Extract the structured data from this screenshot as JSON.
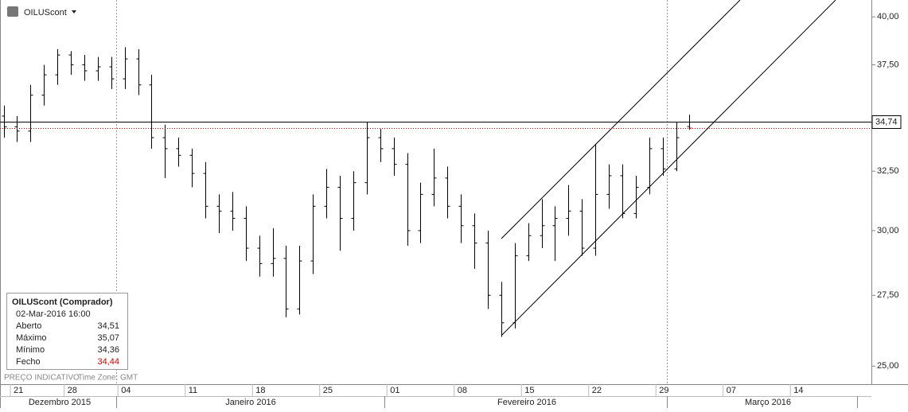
{
  "header": {
    "symbol": "OILUScont"
  },
  "chart_data": {
    "type": "ohlc",
    "log_scale": true,
    "color": "#000000",
    "last_color": "#cc0000",
    "x": [
      -0.5,
      0.5,
      1.5,
      2.5,
      3.5,
      4.5,
      5.5,
      6.5,
      7.5,
      8.5,
      9.5,
      10.5,
      11.5,
      12.5,
      13.5,
      14.5,
      15.5,
      16.5,
      17.5,
      18.5,
      19.5,
      20.5,
      21.5,
      22.5,
      23.5,
      24.5,
      25.5,
      26.5,
      27.5,
      28.5,
      29.5,
      30.5,
      31.5,
      32.5,
      33.5,
      34.5,
      35.5,
      36.5,
      37.5,
      38.5,
      39.5,
      40.5,
      41.5,
      42.5,
      43.5,
      44.5,
      45.5,
      46.5,
      47.5,
      48.5,
      49.5,
      50.5
    ],
    "open": [
      35.0,
      34.5,
      34.3,
      36.0,
      37.0,
      38.0,
      37.5,
      37.2,
      37.4,
      36.8,
      37.8,
      36.5,
      34.0,
      33.5,
      33.2,
      32.4,
      31.0,
      30.8,
      30.5,
      29.3,
      28.7,
      28.9,
      27.0,
      28.8,
      31.0,
      31.8,
      30.5,
      32.0,
      34.0,
      33.5,
      32.8,
      30.0,
      31.5,
      32.2,
      31.0,
      30.2,
      29.5,
      27.5,
      26.5,
      29.0,
      29.8,
      30.2,
      30.5,
      30.8,
      29.3,
      31.5,
      32.3,
      30.7,
      31.8,
      33.5,
      32.6,
      34.51
    ],
    "high": [
      35.5,
      35.0,
      36.5,
      37.5,
      38.3,
      38.2,
      38.0,
      37.9,
      37.9,
      38.4,
      38.3,
      37.0,
      34.6,
      34.0,
      33.5,
      32.9,
      31.5,
      31.6,
      31.0,
      29.8,
      30.1,
      29.4,
      29.4,
      31.5,
      32.6,
      32.3,
      32.5,
      34.7,
      34.4,
      34.0,
      33.3,
      32.0,
      33.5,
      32.7,
      31.5,
      30.7,
      30.0,
      28.0,
      29.5,
      30.3,
      31.3,
      31.0,
      31.9,
      31.3,
      33.7,
      32.8,
      32.8,
      32.3,
      34.0,
      34.0,
      34.7,
      35.07
    ],
    "low": [
      34.0,
      33.8,
      33.8,
      35.5,
      36.5,
      37.0,
      36.7,
      36.7,
      36.3,
      36.3,
      36.0,
      33.5,
      32.2,
      32.7,
      31.8,
      30.5,
      29.9,
      30.0,
      28.8,
      28.2,
      28.2,
      26.7,
      26.8,
      28.3,
      30.5,
      29.2,
      30.0,
      31.5,
      32.9,
      32.3,
      29.4,
      29.5,
      31.0,
      30.5,
      29.5,
      28.5,
      27.0,
      26.0,
      26.3,
      28.8,
      29.3,
      28.8,
      29.8,
      29.0,
      29.0,
      30.9,
      30.5,
      30.5,
      31.5,
      32.3,
      32.5,
      34.36
    ],
    "close": [
      34.5,
      34.3,
      36.0,
      37.0,
      38.0,
      37.5,
      37.2,
      37.4,
      36.8,
      37.8,
      36.5,
      34.0,
      33.5,
      33.2,
      32.4,
      31.0,
      30.8,
      30.5,
      29.3,
      28.7,
      28.9,
      27.0,
      28.8,
      31.0,
      31.8,
      30.5,
      32.0,
      34.0,
      33.5,
      32.8,
      30.0,
      31.5,
      32.2,
      31.0,
      30.2,
      29.5,
      27.5,
      26.5,
      29.0,
      29.8,
      30.2,
      30.5,
      30.8,
      29.3,
      31.5,
      32.3,
      30.7,
      31.8,
      33.5,
      32.6,
      34.0,
      34.44
    ],
    "xlim": [
      -0.77,
      63.43
    ],
    "xticks": [
      {
        "value": 0,
        "label": "21"
      },
      {
        "value": 4,
        "label": "28"
      },
      {
        "value": 8,
        "label": "04"
      },
      {
        "value": 13,
        "label": "11"
      },
      {
        "value": 18,
        "label": "18"
      },
      {
        "value": 23,
        "label": "25"
      },
      {
        "value": 28,
        "label": "01"
      },
      {
        "value": 33,
        "label": "08"
      },
      {
        "value": 38,
        "label": "15"
      },
      {
        "value": 43,
        "label": "22"
      },
      {
        "value": 48,
        "label": "29"
      },
      {
        "value": 53,
        "label": "07"
      },
      {
        "value": 58,
        "label": "14"
      }
    ],
    "months": [
      "Dezembro 2015",
      "Janeiro 2016",
      "Fevereiro 2016",
      "Março 2016"
    ],
    "ylim": [
      24.4,
      40.7
    ],
    "yticks": [
      {
        "value": 25,
        "label": "25,00"
      },
      {
        "value": 27.5,
        "label": "27,50"
      },
      {
        "value": 30,
        "label": "30,00"
      },
      {
        "value": 32.5,
        "label": "32,50"
      },
      {
        "value": 37.5,
        "label": "37,50"
      },
      {
        "value": 40,
        "label": "40,00"
      }
    ],
    "price_marker": {
      "value": 34.74,
      "label": "34,74"
    }
  },
  "info_box": {
    "title": "OILUScont (Comprador)",
    "date": "02-Mar-2016 16:00",
    "rows": [
      {
        "label": "Aberto",
        "value": "34,51"
      },
      {
        "label": "Máximo",
        "value": "35,07"
      },
      {
        "label": "Mínimo",
        "value": "34,36"
      },
      {
        "label": "Fecho",
        "value": "34,44"
      }
    ]
  },
  "footer": {
    "note": "PREÇO INDICATIVO",
    "timezone": "Time Zone: GMT"
  }
}
